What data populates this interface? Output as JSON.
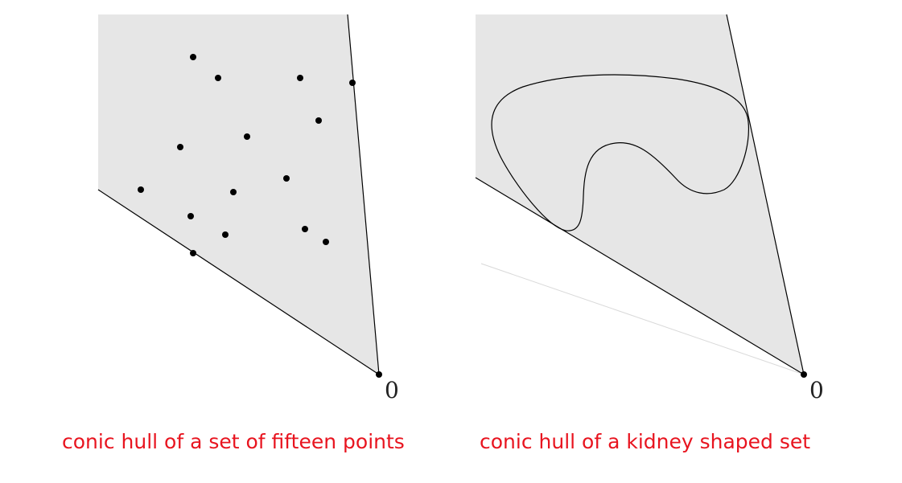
{
  "panels": [
    {
      "caption": "conic hull of a set of fifteen points",
      "origin_label": "0"
    },
    {
      "caption": "conic hull of a kidney shaped set",
      "origin_label": "0"
    }
  ],
  "colors": {
    "hull_fill": "#e6e6e6",
    "line": "#000000",
    "faint_line": "#d9d9d9",
    "caption": "#e8141f"
  }
}
